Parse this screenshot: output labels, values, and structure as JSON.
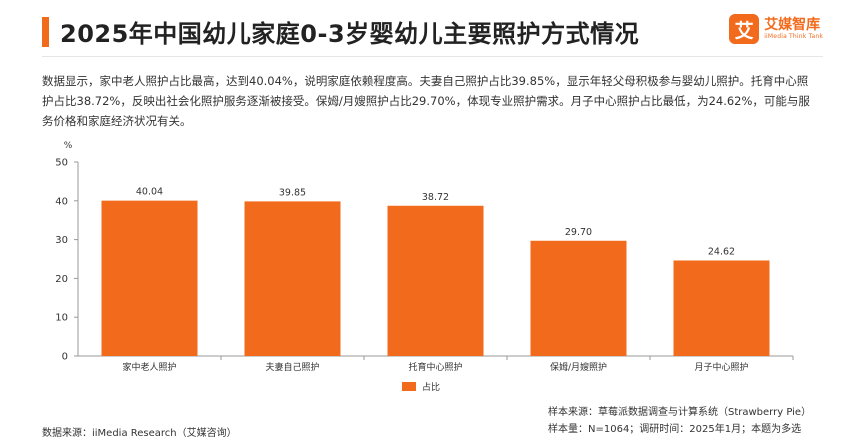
{
  "header": {
    "title": "2025年中国幼儿家庭0-3岁婴幼儿主要照护方式情况",
    "logo_mark": "艾",
    "logo_name": "艾媒智库",
    "logo_sub": "iiMedia Think Tank"
  },
  "description": "数据显示，家中老人照护占比最高，达到40.04%，说明家庭依赖程度高。夫妻自己照护占比39.85%，显示年轻父母积极参与婴幼儿照护。托育中心照护占比38.72%，反映出社会化照护服务逐渐被接受。保姆/月嫂照护占比29.70%，体现专业照护需求。月子中心照护占比最低，为24.62%，可能与服务价格和家庭经济状况有关。",
  "chart_data": {
    "type": "bar",
    "categories": [
      "家中老人照护",
      "夫妻自己照护",
      "托育中心照护",
      "保姆/月嫂照护",
      "月子中心照护"
    ],
    "series": [
      {
        "name": "占比",
        "values": [
          40.04,
          39.85,
          38.72,
          29.7,
          24.62
        ]
      }
    ],
    "value_labels": [
      "40.04",
      "39.85",
      "38.72",
      "29.70",
      "24.62"
    ],
    "unit": "%",
    "ylim": [
      0,
      50
    ],
    "yticks": [
      "0",
      "10",
      "20",
      "30",
      "40",
      "50"
    ],
    "grid": false,
    "legend_position": "bottom-center",
    "bar_color": "#f26a1b"
  },
  "sources": {
    "left": "数据来源：iiMedia Research（艾媒咨询）",
    "right_line1": "样本来源：草莓派数据调查与计算系统（Strawberry Pie）",
    "right_line2": "样本量：N=1064；调研时间：2025年1月；本题为多选"
  },
  "colors": {
    "accent": "#f26a1b",
    "axis": "#999999"
  }
}
